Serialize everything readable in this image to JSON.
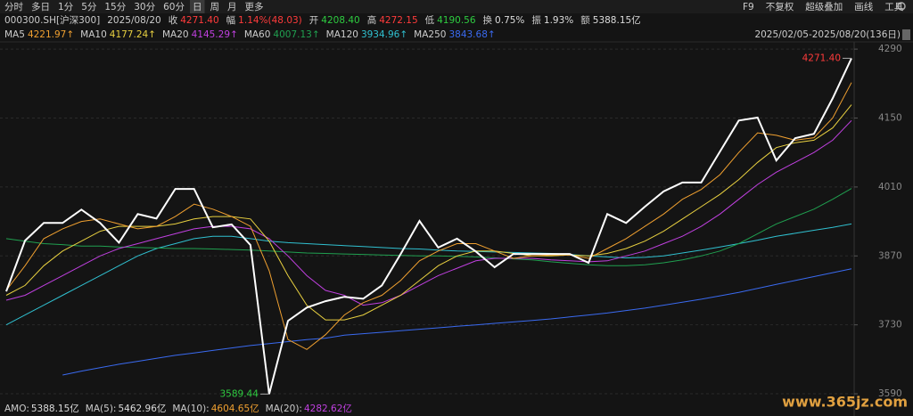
{
  "header": {
    "periods": [
      "分时",
      "多日",
      "1分",
      "5分",
      "15分",
      "30分",
      "60分",
      "日",
      "周",
      "月",
      "更多"
    ],
    "selected_index": 7,
    "tools": [
      "F9",
      "不复权",
      "超级叠加",
      "画线",
      "工具"
    ],
    "symbol": "000300.SH[沪深300]",
    "date": "2025/08/20",
    "quote": [
      {
        "label": "收",
        "value": "4271.40",
        "color": "#ff3b3b"
      },
      {
        "label": "幅",
        "value": "1.14%(48.03)",
        "color": "#ff3b3b"
      },
      {
        "label": "开",
        "value": "4208.40",
        "color": "#2ecc40"
      },
      {
        "label": "高",
        "value": "4272.15",
        "color": "#ff3b3b"
      },
      {
        "label": "低",
        "value": "4190.56",
        "color": "#2ecc40"
      },
      {
        "label": "换",
        "value": "0.75%",
        "color": "#dddddd"
      },
      {
        "label": "振",
        "value": "1.93%",
        "color": "#dddddd"
      },
      {
        "label": "额",
        "value": "5388.15亿",
        "color": "#dddddd"
      }
    ],
    "range": "2025/02/05-2025/08/20(136日)"
  },
  "chart_data": {
    "type": "line",
    "grid": true,
    "ylim": [
      3572,
      4321
    ],
    "yticks": [
      4290,
      4150,
      4010,
      3870,
      3730,
      3590
    ],
    "series": [
      {
        "name": "收盘",
        "color": "#ffffff",
        "values": [
          3798,
          3901,
          3937,
          3937,
          3964,
          3937,
          3897,
          3955,
          3946,
          4006,
          4006,
          3928,
          3934,
          3892,
          3589.44,
          3738,
          3765,
          3778,
          3787,
          3783,
          3810,
          3874,
          3941,
          3887,
          3905,
          3879,
          3847,
          3874,
          3874,
          3874,
          3874,
          3856,
          3955,
          3937,
          3970,
          4001,
          4019,
          4019,
          4082,
          4145,
          4151,
          4064,
          4109,
          4118,
          4190,
          4271.4
        ]
      },
      {
        "name": "MA5",
        "legend_value": "4221.97↑",
        "color": "#f0a030",
        "values": [
          3800,
          3850,
          3905,
          3925,
          3940,
          3945,
          3935,
          3925,
          3930,
          3950,
          3975,
          3965,
          3950,
          3930,
          3840,
          3700,
          3680,
          3710,
          3750,
          3775,
          3790,
          3820,
          3860,
          3880,
          3895,
          3895,
          3880,
          3865,
          3870,
          3872,
          3872,
          3865,
          3885,
          3905,
          3930,
          3955,
          3985,
          4005,
          4035,
          4080,
          4120,
          4115,
          4105,
          4110,
          4150,
          4222
        ]
      },
      {
        "name": "MA10",
        "legend_value": "4177.24↑",
        "color": "#e8d040",
        "values": [
          3790,
          3810,
          3850,
          3880,
          3900,
          3920,
          3930,
          3930,
          3930,
          3935,
          3945,
          3950,
          3950,
          3945,
          3900,
          3830,
          3770,
          3740,
          3740,
          3750,
          3770,
          3790,
          3820,
          3850,
          3870,
          3880,
          3880,
          3875,
          3870,
          3870,
          3872,
          3870,
          3875,
          3885,
          3900,
          3920,
          3945,
          3970,
          3995,
          4025,
          4060,
          4090,
          4100,
          4105,
          4130,
          4177
        ]
      },
      {
        "name": "MA20",
        "legend_value": "4145.29↑",
        "color": "#c040e0",
        "values": [
          3780,
          3790,
          3810,
          3830,
          3850,
          3870,
          3885,
          3895,
          3905,
          3915,
          3925,
          3930,
          3930,
          3925,
          3905,
          3870,
          3830,
          3800,
          3790,
          3770,
          3775,
          3790,
          3810,
          3830,
          3845,
          3860,
          3865,
          3865,
          3865,
          3862,
          3860,
          3858,
          3860,
          3870,
          3880,
          3895,
          3910,
          3930,
          3955,
          3985,
          4015,
          4040,
          4060,
          4080,
          4105,
          4145
        ]
      },
      {
        "name": "MA60",
        "legend_value": "4007.13↑",
        "color": "#20a050",
        "values": [
          3905,
          3900,
          3895,
          3893,
          3890,
          3890,
          3888,
          3887,
          3886,
          3885,
          3885,
          3884,
          3883,
          3882,
          3880,
          3878,
          3876,
          3875,
          3874,
          3873,
          3872,
          3871,
          3870,
          3870,
          3869,
          3868,
          3866,
          3864,
          3862,
          3858,
          3855,
          3852,
          3850,
          3850,
          3852,
          3856,
          3862,
          3870,
          3880,
          3895,
          3915,
          3935,
          3950,
          3965,
          3985,
          4007
        ]
      },
      {
        "name": "MA120",
        "legend_value": "3934.96↑",
        "color": "#30c0d0",
        "values": [
          3730,
          3750,
          3770,
          3790,
          3810,
          3830,
          3850,
          3870,
          3885,
          3895,
          3905,
          3910,
          3910,
          3905,
          3900,
          3897,
          3895,
          3893,
          3891,
          3889,
          3887,
          3885,
          3884,
          3882,
          3880,
          3879,
          3878,
          3877,
          3876,
          3875,
          3873,
          3870,
          3868,
          3866,
          3867,
          3870,
          3876,
          3882,
          3888,
          3895,
          3902,
          3910,
          3916,
          3922,
          3928,
          3935
        ]
      },
      {
        "name": "MA250",
        "legend_value": "3843.68↑",
        "color": "#3a6af0",
        "values": [
          null,
          null,
          null,
          3628,
          3636,
          3643,
          3650,
          3656,
          3662,
          3668,
          3673,
          3678,
          3683,
          3688,
          3692,
          3696,
          3700,
          3703,
          3709,
          3712,
          3715,
          3718,
          3721,
          3724,
          3727,
          3730,
          3733,
          3736,
          3739,
          3742,
          3746,
          3750,
          3754,
          3759,
          3764,
          3770,
          3776,
          3782,
          3789,
          3796,
          3804,
          3812,
          3820,
          3828,
          3836,
          3844
        ]
      }
    ],
    "annotations": [
      {
        "label": "4271.40",
        "value": 4271.4,
        "color": "#ff3b3b"
      },
      {
        "label": "3589.44",
        "value": 3589.44,
        "color": "#2ecc40"
      }
    ]
  },
  "footer": [
    {
      "label": "AMO:",
      "value": "5388.15亿",
      "color": "#dddddd"
    },
    {
      "label": "MA(5):",
      "value": "5462.96亿",
      "color": "#dddddd"
    },
    {
      "label": "MA(10):",
      "value": "4604.65亿",
      "color": "#f0a030"
    },
    {
      "label": "MA(20):",
      "value": "4282.62亿",
      "color": "#c040e0"
    }
  ],
  "watermark": "www.365jz.com"
}
